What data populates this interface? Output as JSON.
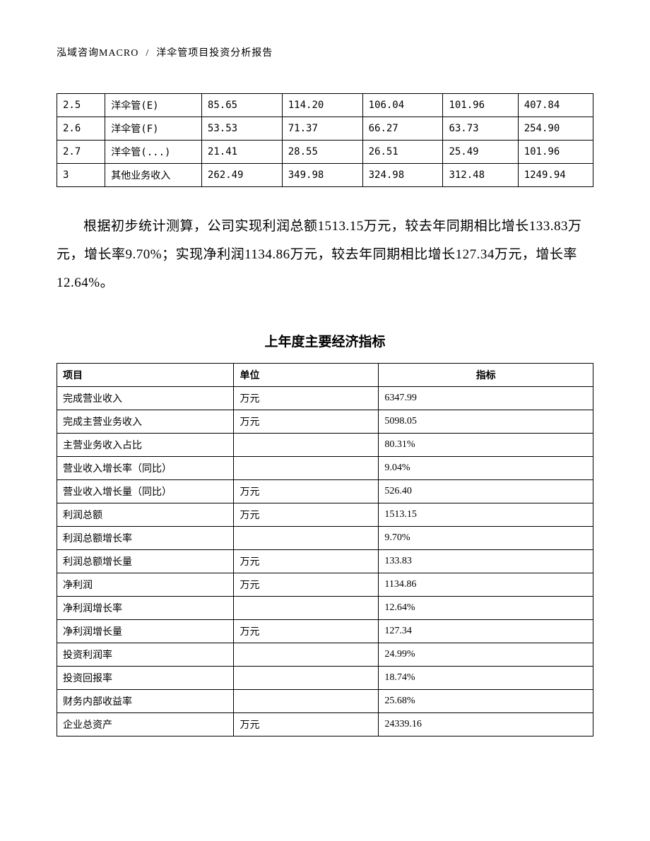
{
  "header": {
    "company": "泓域咨询MACRO",
    "slash": "/",
    "title": "洋伞管项目投资分析报告"
  },
  "table1": {
    "rows": [
      [
        "2.5",
        "洋伞管(E)",
        "85.65",
        "114.20",
        "106.04",
        "101.96",
        "407.84"
      ],
      [
        "2.6",
        "洋伞管(F)",
        "53.53",
        "71.37",
        "66.27",
        "63.73",
        "254.90"
      ],
      [
        "2.7",
        "洋伞管(...)",
        "21.41",
        "28.55",
        "26.51",
        "25.49",
        "101.96"
      ],
      [
        "3",
        "其他业务收入",
        "262.49",
        "349.98",
        "324.98",
        "312.48",
        "1249.94"
      ]
    ]
  },
  "paragraph": "根据初步统计测算，公司实现利润总额1513.15万元，较去年同期相比增长133.83万元，增长率9.70%；实现净利润1134.86万元，较去年同期相比增长127.34万元，增长率12.64%。",
  "section_title": "上年度主要经济指标",
  "table2": {
    "headers": [
      "项目",
      "单位",
      "指标"
    ],
    "rows": [
      [
        "完成营业收入",
        "万元",
        "6347.99"
      ],
      [
        "完成主营业务收入",
        "万元",
        "5098.05"
      ],
      [
        "主营业务收入占比",
        "",
        "80.31%"
      ],
      [
        "营业收入增长率（同比）",
        "",
        "9.04%"
      ],
      [
        "营业收入增长量（同比）",
        "万元",
        "526.40"
      ],
      [
        "利润总额",
        "万元",
        "1513.15"
      ],
      [
        "利润总额增长率",
        "",
        "9.70%"
      ],
      [
        "利润总额增长量",
        "万元",
        "133.83"
      ],
      [
        "净利润",
        "万元",
        "1134.86"
      ],
      [
        "净利润增长率",
        "",
        "12.64%"
      ],
      [
        "净利润增长量",
        "万元",
        "127.34"
      ],
      [
        "投资利润率",
        "",
        "24.99%"
      ],
      [
        "投资回报率",
        "",
        "18.74%"
      ],
      [
        "财务内部收益率",
        "",
        "25.68%"
      ],
      [
        "企业总资产",
        "万元",
        "24339.16"
      ]
    ]
  }
}
